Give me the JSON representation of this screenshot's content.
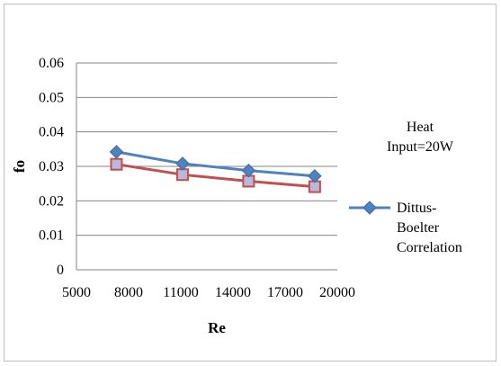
{
  "chart_data": {
    "type": "line",
    "title": "",
    "xlabel": "Re",
    "ylabel": "fo",
    "xlim": [
      5000,
      20000
    ],
    "ylim": [
      0,
      0.06
    ],
    "x_ticks": [
      "5000",
      "8000",
      "11000",
      "14000",
      "17000",
      "20000"
    ],
    "y_ticks": [
      "0",
      "0.01",
      "0.02",
      "0.03",
      "0.04",
      "0.05",
      "0.06"
    ],
    "grid": "horizontal",
    "annotation": [
      "Heat",
      "Input=20W"
    ],
    "legend_position": "right",
    "series": [
      {
        "name": "Dittus-Boelter Correlation",
        "legend_lines": [
          "Dittus-",
          "Boelter",
          "Correlation"
        ],
        "color": "#4f81bd",
        "marker": "diamond",
        "x": [
          7300,
          11100,
          14900,
          18700
        ],
        "y": [
          0.0342,
          0.0308,
          0.0288,
          0.0272
        ]
      },
      {
        "color": "#c0504d",
        "marker": "square",
        "x": [
          7300,
          11100,
          14900,
          18700
        ],
        "y": [
          0.0306,
          0.0276,
          0.0257,
          0.0241
        ]
      }
    ]
  }
}
